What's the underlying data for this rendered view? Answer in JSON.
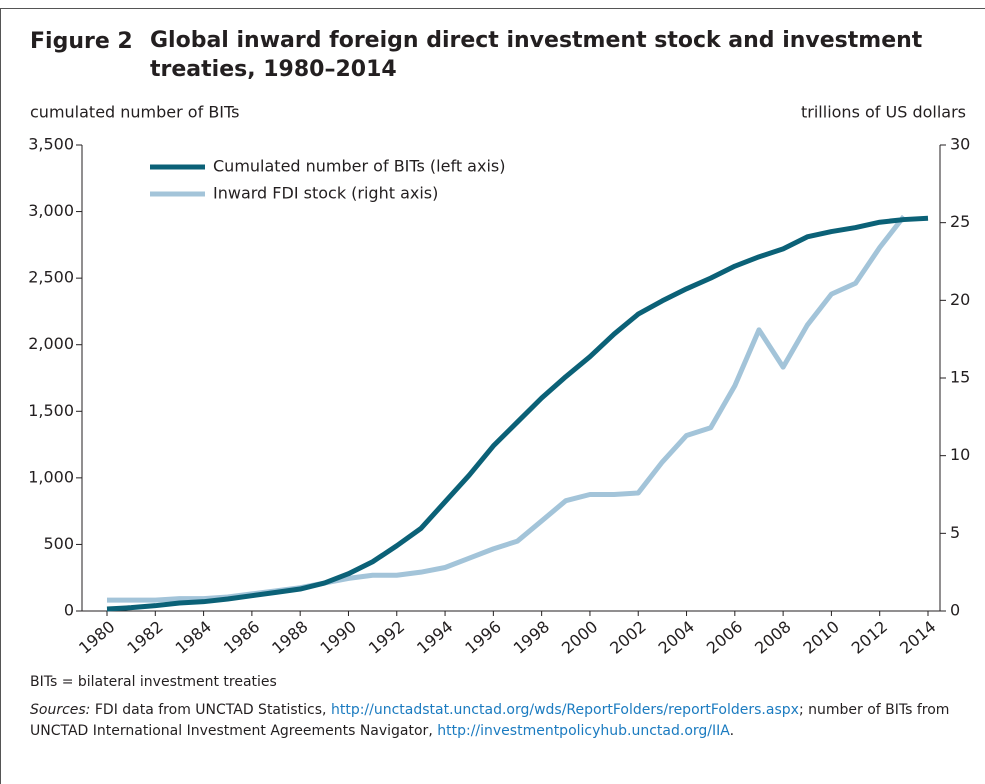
{
  "chart_data": {
    "type": "line",
    "figure_label": "Figure 2",
    "title": "Global inward foreign direct investment stock and investment treaties, 1980–2014",
    "ylabel": "cumulated number of BITs",
    "y2label": "trillions of US dollars",
    "x": [
      1980,
      1981,
      1982,
      1983,
      1984,
      1985,
      1986,
      1987,
      1988,
      1989,
      1990,
      1991,
      1992,
      1993,
      1994,
      1995,
      1996,
      1997,
      1998,
      1999,
      2000,
      2001,
      2002,
      2003,
      2004,
      2005,
      2006,
      2007,
      2008,
      2009,
      2010,
      2011,
      2012,
      2013,
      2014
    ],
    "series": [
      {
        "name": "Cumulated number of BITs (left axis)",
        "color": "#0b6177",
        "values": [
          15,
          25,
          40,
          60,
          70,
          90,
          115,
          140,
          165,
          210,
          280,
          370,
          490,
          620,
          820,
          1020,
          1240,
          1420,
          1600,
          1760,
          1910,
          2080,
          2230,
          2330,
          2420,
          2500,
          2590,
          2660,
          2720,
          2810,
          2850,
          2880,
          2920,
          2940,
          2950
        ]
      },
      {
        "name": "Inward FDI stock (right axis)",
        "color": "#a3c4d9",
        "axis": "y2",
        "values": [
          0.7,
          0.7,
          0.7,
          0.8,
          0.8,
          0.9,
          1.1,
          1.3,
          1.5,
          1.8,
          2.1,
          2.3,
          2.3,
          2.5,
          2.8,
          3.4,
          4.0,
          4.5,
          5.8,
          7.1,
          7.5,
          7.5,
          7.6,
          9.6,
          11.3,
          11.8,
          14.5,
          18.1,
          15.7,
          18.4,
          20.4,
          21.1,
          23.4,
          25.4,
          null
        ]
      }
    ],
    "xlim": [
      1980,
      2014
    ],
    "xticks": [
      1980,
      1982,
      1984,
      1986,
      1988,
      1990,
      1992,
      1994,
      1996,
      1998,
      2000,
      2002,
      2004,
      2006,
      2008,
      2010,
      2012,
      2014
    ],
    "ylim": [
      0,
      3500
    ],
    "yticks": [
      0,
      500,
      {
        "value": 1000,
        "label": "1,000"
      },
      {
        "value": 1500,
        "label": "1,500"
      },
      {
        "value": 2000,
        "label": "2,000"
      },
      {
        "value": 2500,
        "label": "2,500"
      },
      {
        "value": 3000,
        "label": "3,000"
      },
      {
        "value": 3500,
        "label": "3,500"
      }
    ],
    "y2lim": [
      0,
      30
    ],
    "y2ticks": [
      0,
      5,
      10,
      15,
      20,
      25,
      30
    ],
    "legend": "upper left",
    "abbreviation_note": "BITs = bilateral investment treaties",
    "sources": {
      "label": "Sources:",
      "text_1": "FDI data from UNCTAD Statistics,",
      "link_1": "http://unctadstat.unctad.org/wds/ReportFolders/reportFolders.aspx",
      "text_2": "; number of BITs from  UNCTAD International Investment Agreements Navigator,",
      "link_2": "http://investmentpolicyhub.unctad.org/IIA",
      "text_3": "."
    }
  }
}
